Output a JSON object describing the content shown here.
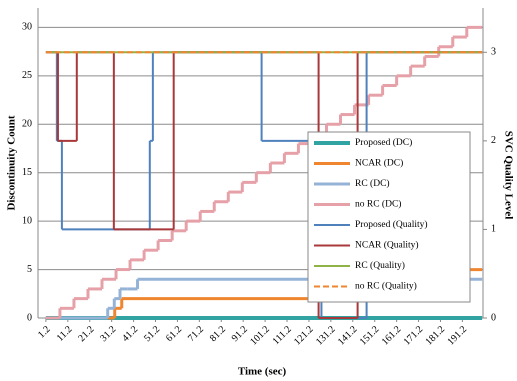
{
  "chart_data": {
    "type": "step-line",
    "x_label": "Time (sec)",
    "y_label": "Discontinuity Count",
    "y2_label": "SVC Quality Level",
    "xlim": [
      -2.4,
      200.6
    ],
    "xticks": [
      1.2,
      11.2,
      21.2,
      31.2,
      41.2,
      51.2,
      61.2,
      71.2,
      81.2,
      91.2,
      101.2,
      111.2,
      121.2,
      131.2,
      141.2,
      151.2,
      161.2,
      171.2,
      181.2,
      191.2
    ],
    "ylim": [
      0,
      32
    ],
    "yticks": [
      0,
      5,
      10,
      15,
      20,
      25,
      30
    ],
    "y2lim": [
      0,
      3.5
    ],
    "y2ticks": [
      0,
      1,
      2,
      3
    ],
    "grid": true,
    "series": [
      {
        "name": "Proposed (DC)",
        "color": "#31a3a3",
        "width": 4,
        "x": [
          1.2,
          200.2
        ],
        "values": [
          0,
          0
        ]
      },
      {
        "name": "NCAR (DC)",
        "color": "#f0852f",
        "width": 3,
        "x": [
          1.2,
          32.6,
          35.8,
          122.4,
          133.8,
          200.2
        ],
        "values": [
          0,
          1,
          2,
          3,
          5,
          5
        ]
      },
      {
        "name": "RC (DC)",
        "color": "#95b3d7",
        "width": 3,
        "x": [
          1.2,
          29.4,
          32.4,
          35,
          38.5,
          43,
          200.2
        ],
        "values": [
          0,
          1,
          2,
          3,
          3,
          4,
          4
        ]
      },
      {
        "name": "no RC (DC)",
        "color": "#e6a0a8",
        "width": 3,
        "x": [
          1.2,
          7.6,
          14,
          20.4,
          26.8,
          33.2,
          39.6,
          46,
          52.4,
          58.8,
          65.2,
          71.6,
          78,
          84.4,
          90.8,
          97.2,
          103.6,
          110,
          116.4,
          122.8,
          129.2,
          135.6,
          142,
          148.4,
          154.8,
          161.2,
          167.6,
          174,
          180.4,
          186.8,
          193.2,
          200.2
        ],
        "values": [
          0,
          1,
          2,
          3,
          4,
          5,
          6,
          7,
          8,
          9,
          10,
          11,
          12,
          13,
          14,
          15,
          16,
          17,
          18,
          19,
          20,
          21,
          22,
          23,
          24,
          25,
          26,
          27,
          28,
          29,
          30,
          30
        ]
      },
      {
        "name": "Proposed (Quality)",
        "color": "#4f81bd",
        "width": 2,
        "axis": "y2",
        "x": [
          1.2,
          6.2,
          8.5,
          48.6,
          50,
          99.6,
          126.9,
          147.5,
          200.2
        ],
        "values": [
          3,
          2,
          1,
          2,
          3,
          2,
          0,
          3,
          3
        ]
      },
      {
        "name": "NCAR (Quality)",
        "color": "#a8383a",
        "width": 2,
        "axis": "y2",
        "x": [
          1.2,
          6.7,
          15.3,
          32.2,
          59.5,
          125.6,
          143.4,
          200.2
        ],
        "values": [
          3,
          2,
          3,
          1,
          3,
          0,
          3,
          3
        ]
      },
      {
        "name": "RC (Quality)",
        "color": "#8fb347",
        "width": 2,
        "axis": "y2",
        "x": [
          1.2,
          200.2
        ],
        "values": [
          3,
          3
        ]
      },
      {
        "name": "no RC (Quality)",
        "color": "#f0852f",
        "width": 2,
        "dash": true,
        "axis": "y2",
        "x": [
          1.2,
          200.2
        ],
        "values": [
          3,
          3
        ]
      }
    ]
  }
}
